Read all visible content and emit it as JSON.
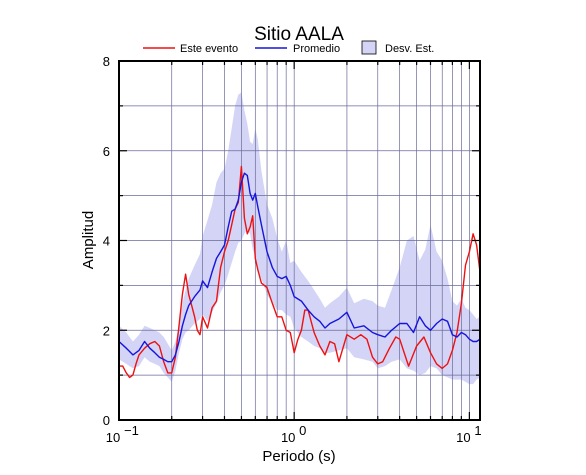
{
  "chart_data": {
    "type": "line",
    "title": "Sitio AALA",
    "xlabel": "Periodo (s)",
    "ylabel": "Amplitud",
    "x_scale": "log",
    "xlim": [
      0.1,
      11.5
    ],
    "ylim": [
      0,
      8
    ],
    "y_ticks": [
      "0",
      "2",
      "4",
      "6",
      "8"
    ],
    "x_ticks": [
      {
        "base": "10",
        "exp": "−1"
      },
      {
        "base": "10",
        "exp": "0"
      },
      {
        "base": "10",
        "exp": "1"
      }
    ],
    "grid": true,
    "legend_position": "top",
    "colors": {
      "event": "#ee1111",
      "mean": "#1515dd",
      "band": "#d4d4f7",
      "band_edge": "#6a6a9a"
    },
    "legend": [
      {
        "label": "Este evento",
        "kind": "line",
        "color": "#ee1111"
      },
      {
        "label": "Promedio",
        "kind": "line",
        "color": "#1515dd"
      },
      {
        "label": "Desv. Est.",
        "kind": "box",
        "color": "#d4d4f7"
      }
    ],
    "series": [
      {
        "name": "Este evento",
        "color": "#ee1111",
        "x": [
          0.1,
          0.105,
          0.11,
          0.115,
          0.12,
          0.125,
          0.13,
          0.14,
          0.15,
          0.16,
          0.17,
          0.18,
          0.19,
          0.2,
          0.21,
          0.22,
          0.23,
          0.24,
          0.25,
          0.26,
          0.27,
          0.28,
          0.29,
          0.3,
          0.32,
          0.34,
          0.36,
          0.38,
          0.4,
          0.42,
          0.44,
          0.46,
          0.48,
          0.5,
          0.52,
          0.54,
          0.56,
          0.58,
          0.6,
          0.62,
          0.65,
          0.7,
          0.75,
          0.8,
          0.85,
          0.9,
          0.95,
          1.0,
          1.05,
          1.1,
          1.15,
          1.2,
          1.3,
          1.4,
          1.5,
          1.6,
          1.7,
          1.8,
          2.0,
          2.2,
          2.4,
          2.6,
          2.8,
          3.0,
          3.2,
          3.5,
          3.8,
          4.0,
          4.5,
          5.0,
          5.5,
          6.0,
          6.5,
          7.0,
          7.5,
          8.0,
          8.5,
          9.0,
          9.5,
          10.0,
          10.5,
          11.0,
          11.5
        ],
        "values": [
          1.2,
          1.2,
          1.05,
          0.95,
          1.0,
          1.25,
          1.45,
          1.6,
          1.7,
          1.75,
          1.65,
          1.3,
          1.05,
          1.05,
          1.4,
          2.1,
          2.8,
          3.25,
          2.8,
          2.55,
          2.3,
          2.0,
          1.9,
          2.3,
          2.05,
          2.5,
          2.65,
          3.4,
          3.75,
          4.0,
          4.35,
          4.7,
          4.85,
          5.65,
          4.5,
          4.15,
          4.3,
          4.55,
          3.6,
          3.35,
          3.05,
          2.95,
          2.6,
          2.3,
          2.3,
          2.0,
          1.95,
          1.5,
          1.8,
          2.0,
          2.45,
          2.45,
          1.95,
          1.65,
          1.45,
          1.75,
          1.7,
          1.3,
          1.9,
          1.8,
          1.9,
          1.8,
          1.4,
          1.25,
          1.3,
          1.6,
          1.85,
          1.8,
          1.2,
          1.65,
          1.85,
          1.5,
          1.25,
          1.15,
          1.25,
          1.55,
          1.95,
          2.6,
          3.45,
          3.75,
          4.15,
          3.9,
          3.3
        ]
      },
      {
        "name": "Promedio",
        "color": "#1515dd",
        "x": [
          0.1,
          0.11,
          0.12,
          0.13,
          0.14,
          0.15,
          0.16,
          0.17,
          0.18,
          0.19,
          0.2,
          0.21,
          0.22,
          0.23,
          0.24,
          0.25,
          0.27,
          0.29,
          0.3,
          0.32,
          0.34,
          0.36,
          0.38,
          0.4,
          0.42,
          0.44,
          0.46,
          0.48,
          0.5,
          0.52,
          0.54,
          0.56,
          0.58,
          0.6,
          0.62,
          0.65,
          0.7,
          0.75,
          0.8,
          0.85,
          0.9,
          0.95,
          1.0,
          1.1,
          1.2,
          1.3,
          1.4,
          1.5,
          1.6,
          1.8,
          2.0,
          2.2,
          2.5,
          2.8,
          3.0,
          3.3,
          3.6,
          4.0,
          4.4,
          4.8,
          5.2,
          5.6,
          6.0,
          6.5,
          7.0,
          7.5,
          8.0,
          8.5,
          9.0,
          9.5,
          10.0,
          10.5,
          11.0,
          11.5
        ],
        "values": [
          1.75,
          1.6,
          1.45,
          1.55,
          1.75,
          1.6,
          1.5,
          1.4,
          1.35,
          1.3,
          1.3,
          1.45,
          1.75,
          2.1,
          2.35,
          2.55,
          2.75,
          2.9,
          3.1,
          2.95,
          3.3,
          3.6,
          3.75,
          3.9,
          4.3,
          4.65,
          4.7,
          4.9,
          5.3,
          5.5,
          5.45,
          5.05,
          4.9,
          5.05,
          4.75,
          4.35,
          3.75,
          3.4,
          3.2,
          3.15,
          3.2,
          3.0,
          2.75,
          2.65,
          2.45,
          2.3,
          2.2,
          2.05,
          2.15,
          2.25,
          2.4,
          2.05,
          2.1,
          1.95,
          1.9,
          1.85,
          2.0,
          2.15,
          2.15,
          1.95,
          2.3,
          2.1,
          2.0,
          2.15,
          2.25,
          2.2,
          1.9,
          1.85,
          1.95,
          1.9,
          1.8,
          1.75,
          1.75,
          1.8
        ]
      }
    ],
    "band": {
      "name": "Desv. Est.",
      "x": [
        0.1,
        0.11,
        0.12,
        0.13,
        0.14,
        0.15,
        0.16,
        0.17,
        0.18,
        0.19,
        0.2,
        0.21,
        0.22,
        0.23,
        0.24,
        0.25,
        0.27,
        0.29,
        0.3,
        0.32,
        0.34,
        0.36,
        0.38,
        0.4,
        0.42,
        0.44,
        0.46,
        0.48,
        0.5,
        0.52,
        0.54,
        0.56,
        0.58,
        0.6,
        0.62,
        0.65,
        0.7,
        0.75,
        0.8,
        0.85,
        0.9,
        0.95,
        1.0,
        1.1,
        1.2,
        1.3,
        1.4,
        1.5,
        1.6,
        1.8,
        2.0,
        2.2,
        2.5,
        2.8,
        3.0,
        3.3,
        3.6,
        4.0,
        4.4,
        4.8,
        5.2,
        5.6,
        6.0,
        6.5,
        7.0,
        7.5,
        8.0,
        8.5,
        9.0,
        9.5,
        10.0,
        10.5,
        11.0,
        11.5
      ],
      "upper": [
        2.1,
        1.95,
        1.75,
        1.9,
        2.1,
        2.05,
        2.0,
        1.95,
        1.85,
        1.7,
        1.55,
        1.75,
        2.1,
        2.6,
        2.9,
        3.15,
        3.45,
        3.7,
        4.1,
        4.45,
        4.8,
        5.3,
        5.5,
        5.6,
        6.0,
        6.5,
        7.0,
        7.25,
        7.3,
        6.9,
        6.6,
        6.2,
        6.15,
        6.5,
        6.25,
        5.55,
        4.8,
        4.5,
        4.05,
        3.75,
        4.0,
        3.5,
        3.55,
        3.3,
        3.1,
        2.9,
        2.7,
        2.5,
        2.6,
        2.75,
        2.95,
        2.6,
        2.7,
        2.65,
        2.55,
        2.5,
        2.9,
        3.4,
        4.0,
        4.1,
        3.55,
        3.8,
        4.35,
        3.75,
        3.55,
        3.15,
        2.65,
        2.55,
        2.7,
        2.5,
        2.45,
        2.35,
        2.25,
        2.3
      ],
      "lower": [
        1.35,
        1.25,
        1.15,
        1.2,
        1.4,
        1.3,
        1.25,
        1.2,
        1.05,
        0.95,
        0.85,
        1.1,
        1.5,
        1.8,
        1.95,
        2.0,
        2.15,
        2.25,
        2.35,
        2.2,
        2.4,
        2.6,
        2.85,
        3.0,
        3.25,
        3.5,
        3.75,
        3.95,
        4.0,
        4.15,
        4.25,
        4.15,
        3.8,
        3.65,
        3.35,
        3.15,
        2.8,
        2.6,
        2.45,
        2.45,
        2.35,
        2.3,
        2.05,
        1.85,
        1.75,
        1.65,
        1.6,
        1.5,
        1.5,
        1.55,
        1.6,
        1.4,
        1.35,
        1.3,
        1.15,
        1.2,
        1.3,
        1.35,
        1.15,
        1.1,
        1.0,
        1.05,
        1.2,
        1.15,
        1.0,
        0.95,
        0.9,
        0.9,
        0.9,
        0.85,
        0.8,
        0.8,
        0.9,
        0.95
      ]
    }
  }
}
